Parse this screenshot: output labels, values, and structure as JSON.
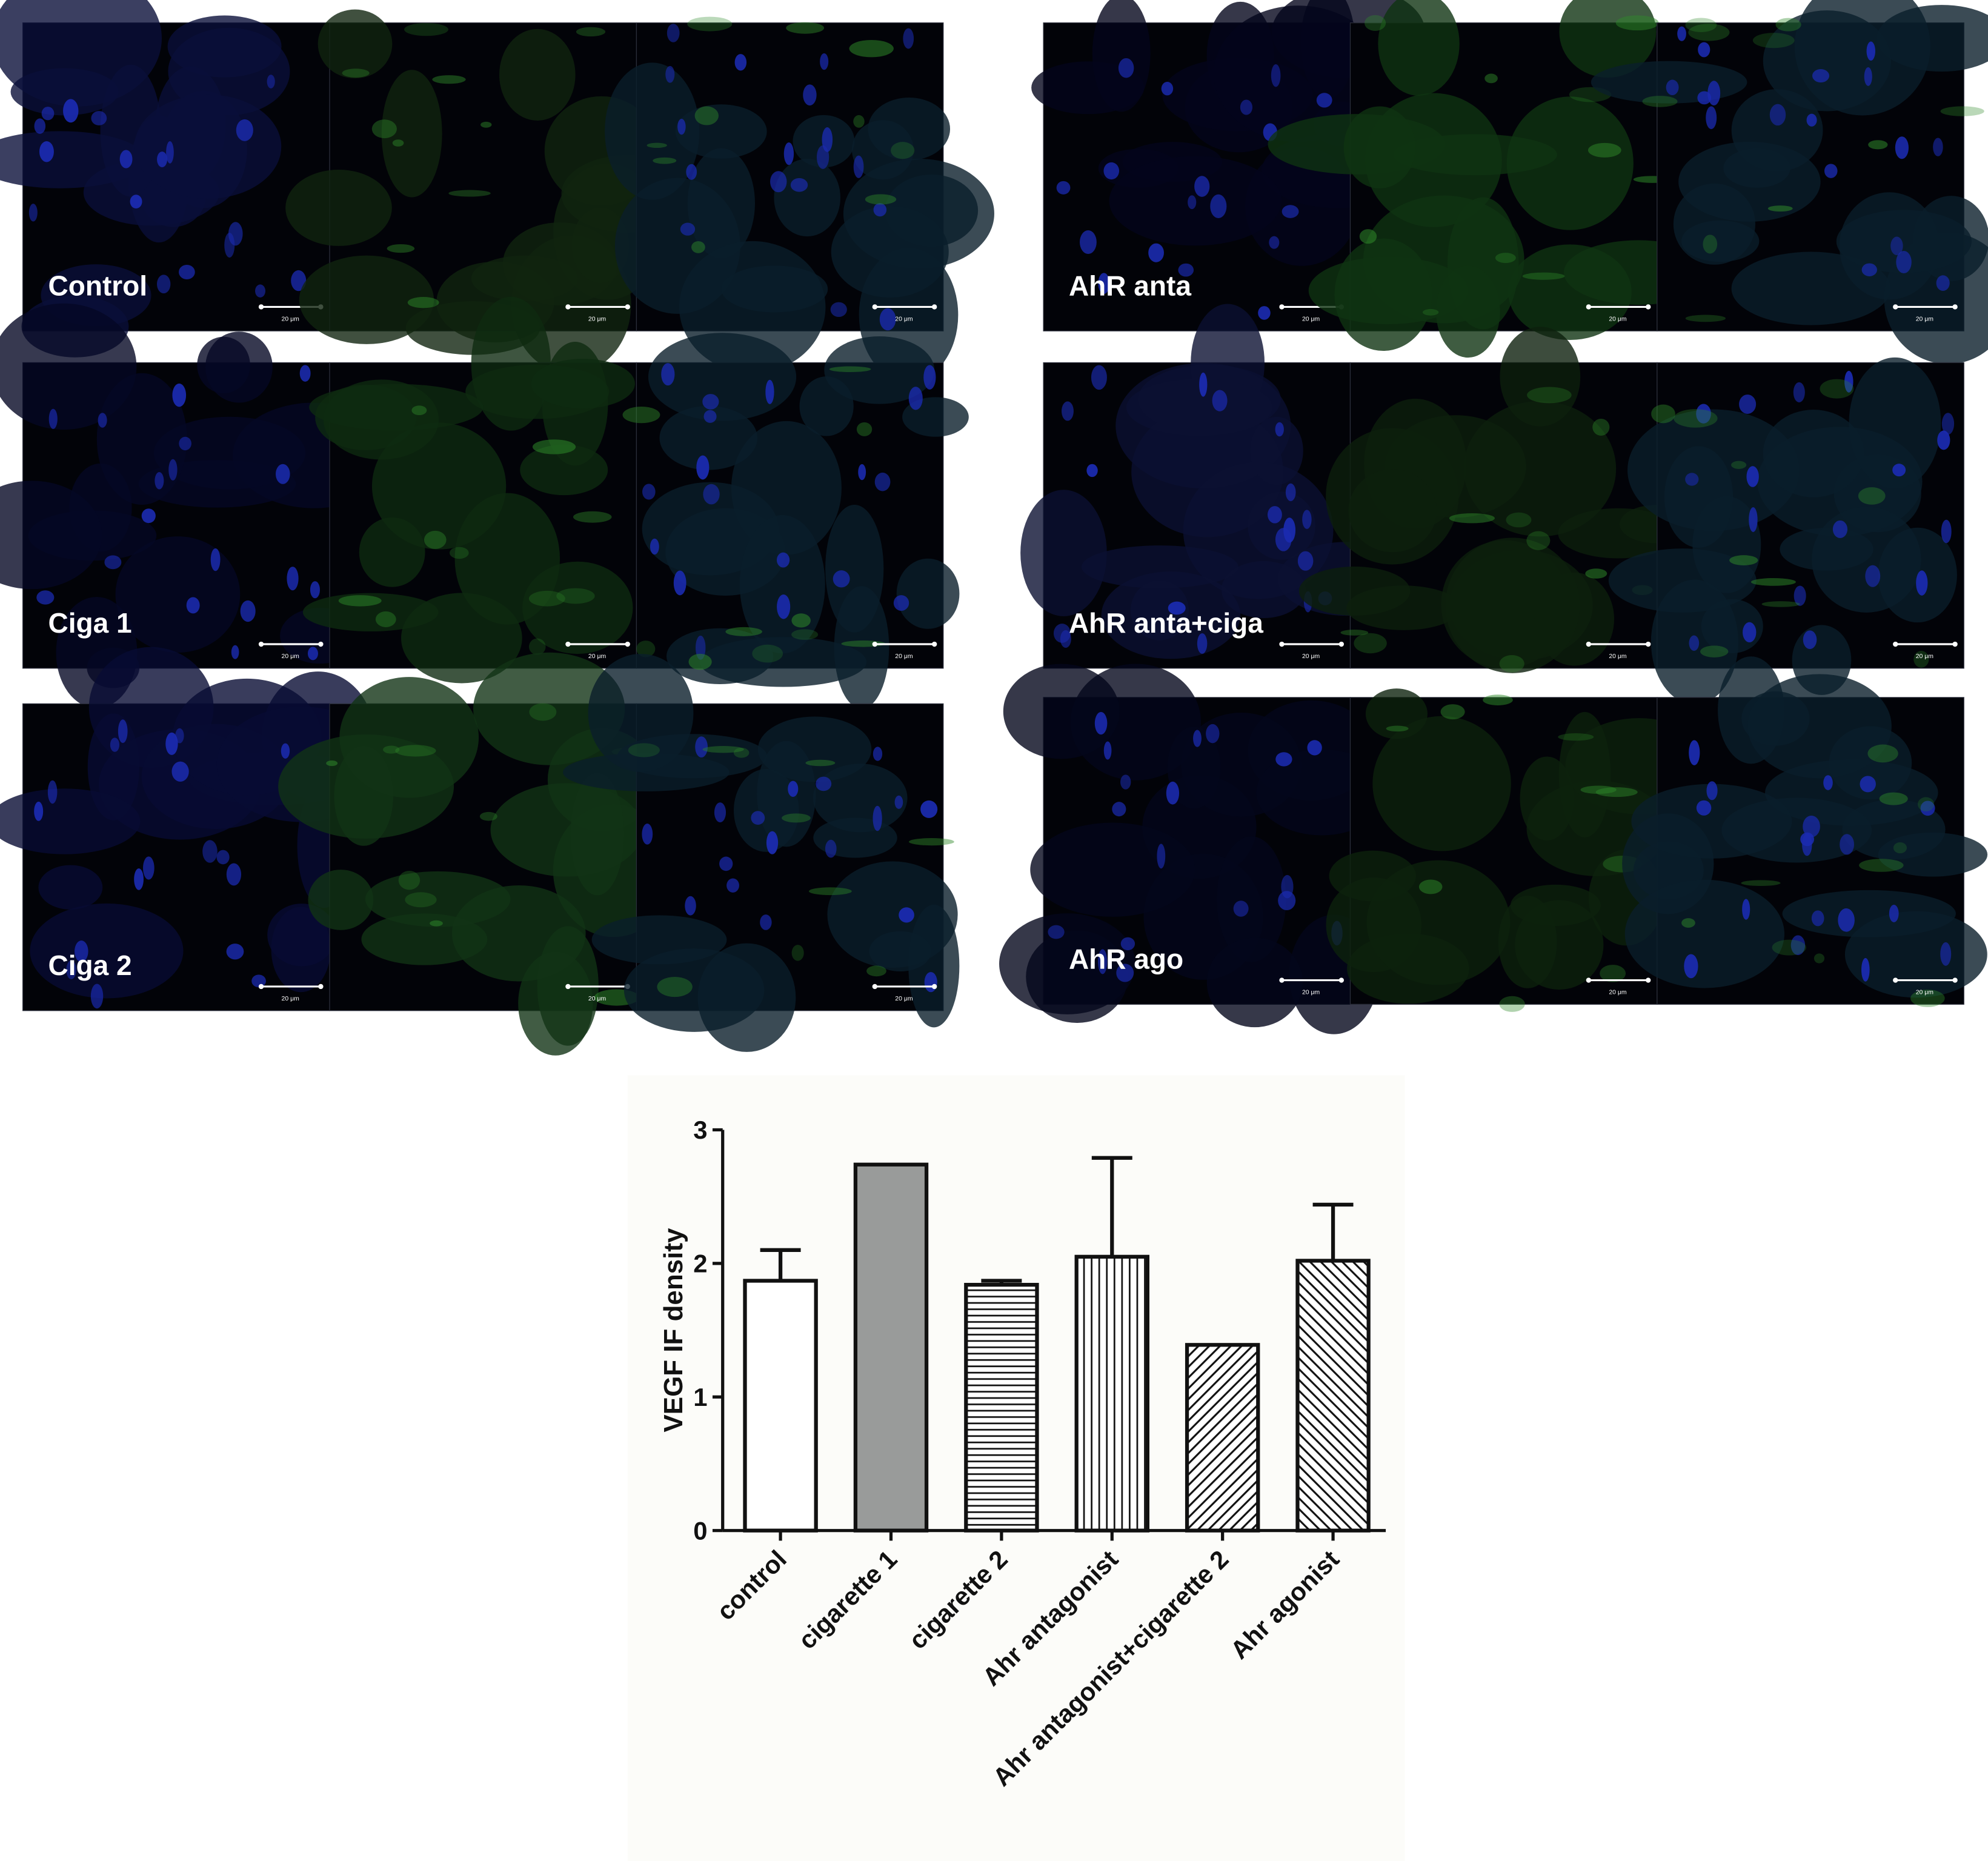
{
  "panels": [
    {
      "label": "Control"
    },
    {
      "label": "Ciga 1"
    },
    {
      "label": "Ciga 2"
    },
    {
      "label": "AhR anta"
    },
    {
      "label": "AhR anta+ciga"
    },
    {
      "label": "AhR ago"
    }
  ],
  "scale_bar": "20 μm",
  "chart_data": {
    "type": "bar",
    "y_label": "VEGF IF density",
    "categories": [
      "control",
      "cigarette 1",
      "cigarette 2",
      "Ahr antagonist",
      "Ahr antagonist+cigarette 2",
      "Ahr agonist"
    ],
    "values": [
      1.87,
      2.74,
      1.84,
      2.05,
      1.39,
      2.02
    ],
    "errors": [
      0.23,
      null,
      0.03,
      0.74,
      null,
      0.42
    ],
    "fills": [
      "none",
      "solid",
      "hlines",
      "vlines",
      "diag-right",
      "diag-left"
    ],
    "color": "#999b9a",
    "edge_color": "#111111",
    "ylim": [
      0,
      3
    ],
    "yticks": [
      0,
      1,
      2,
      3
    ]
  }
}
